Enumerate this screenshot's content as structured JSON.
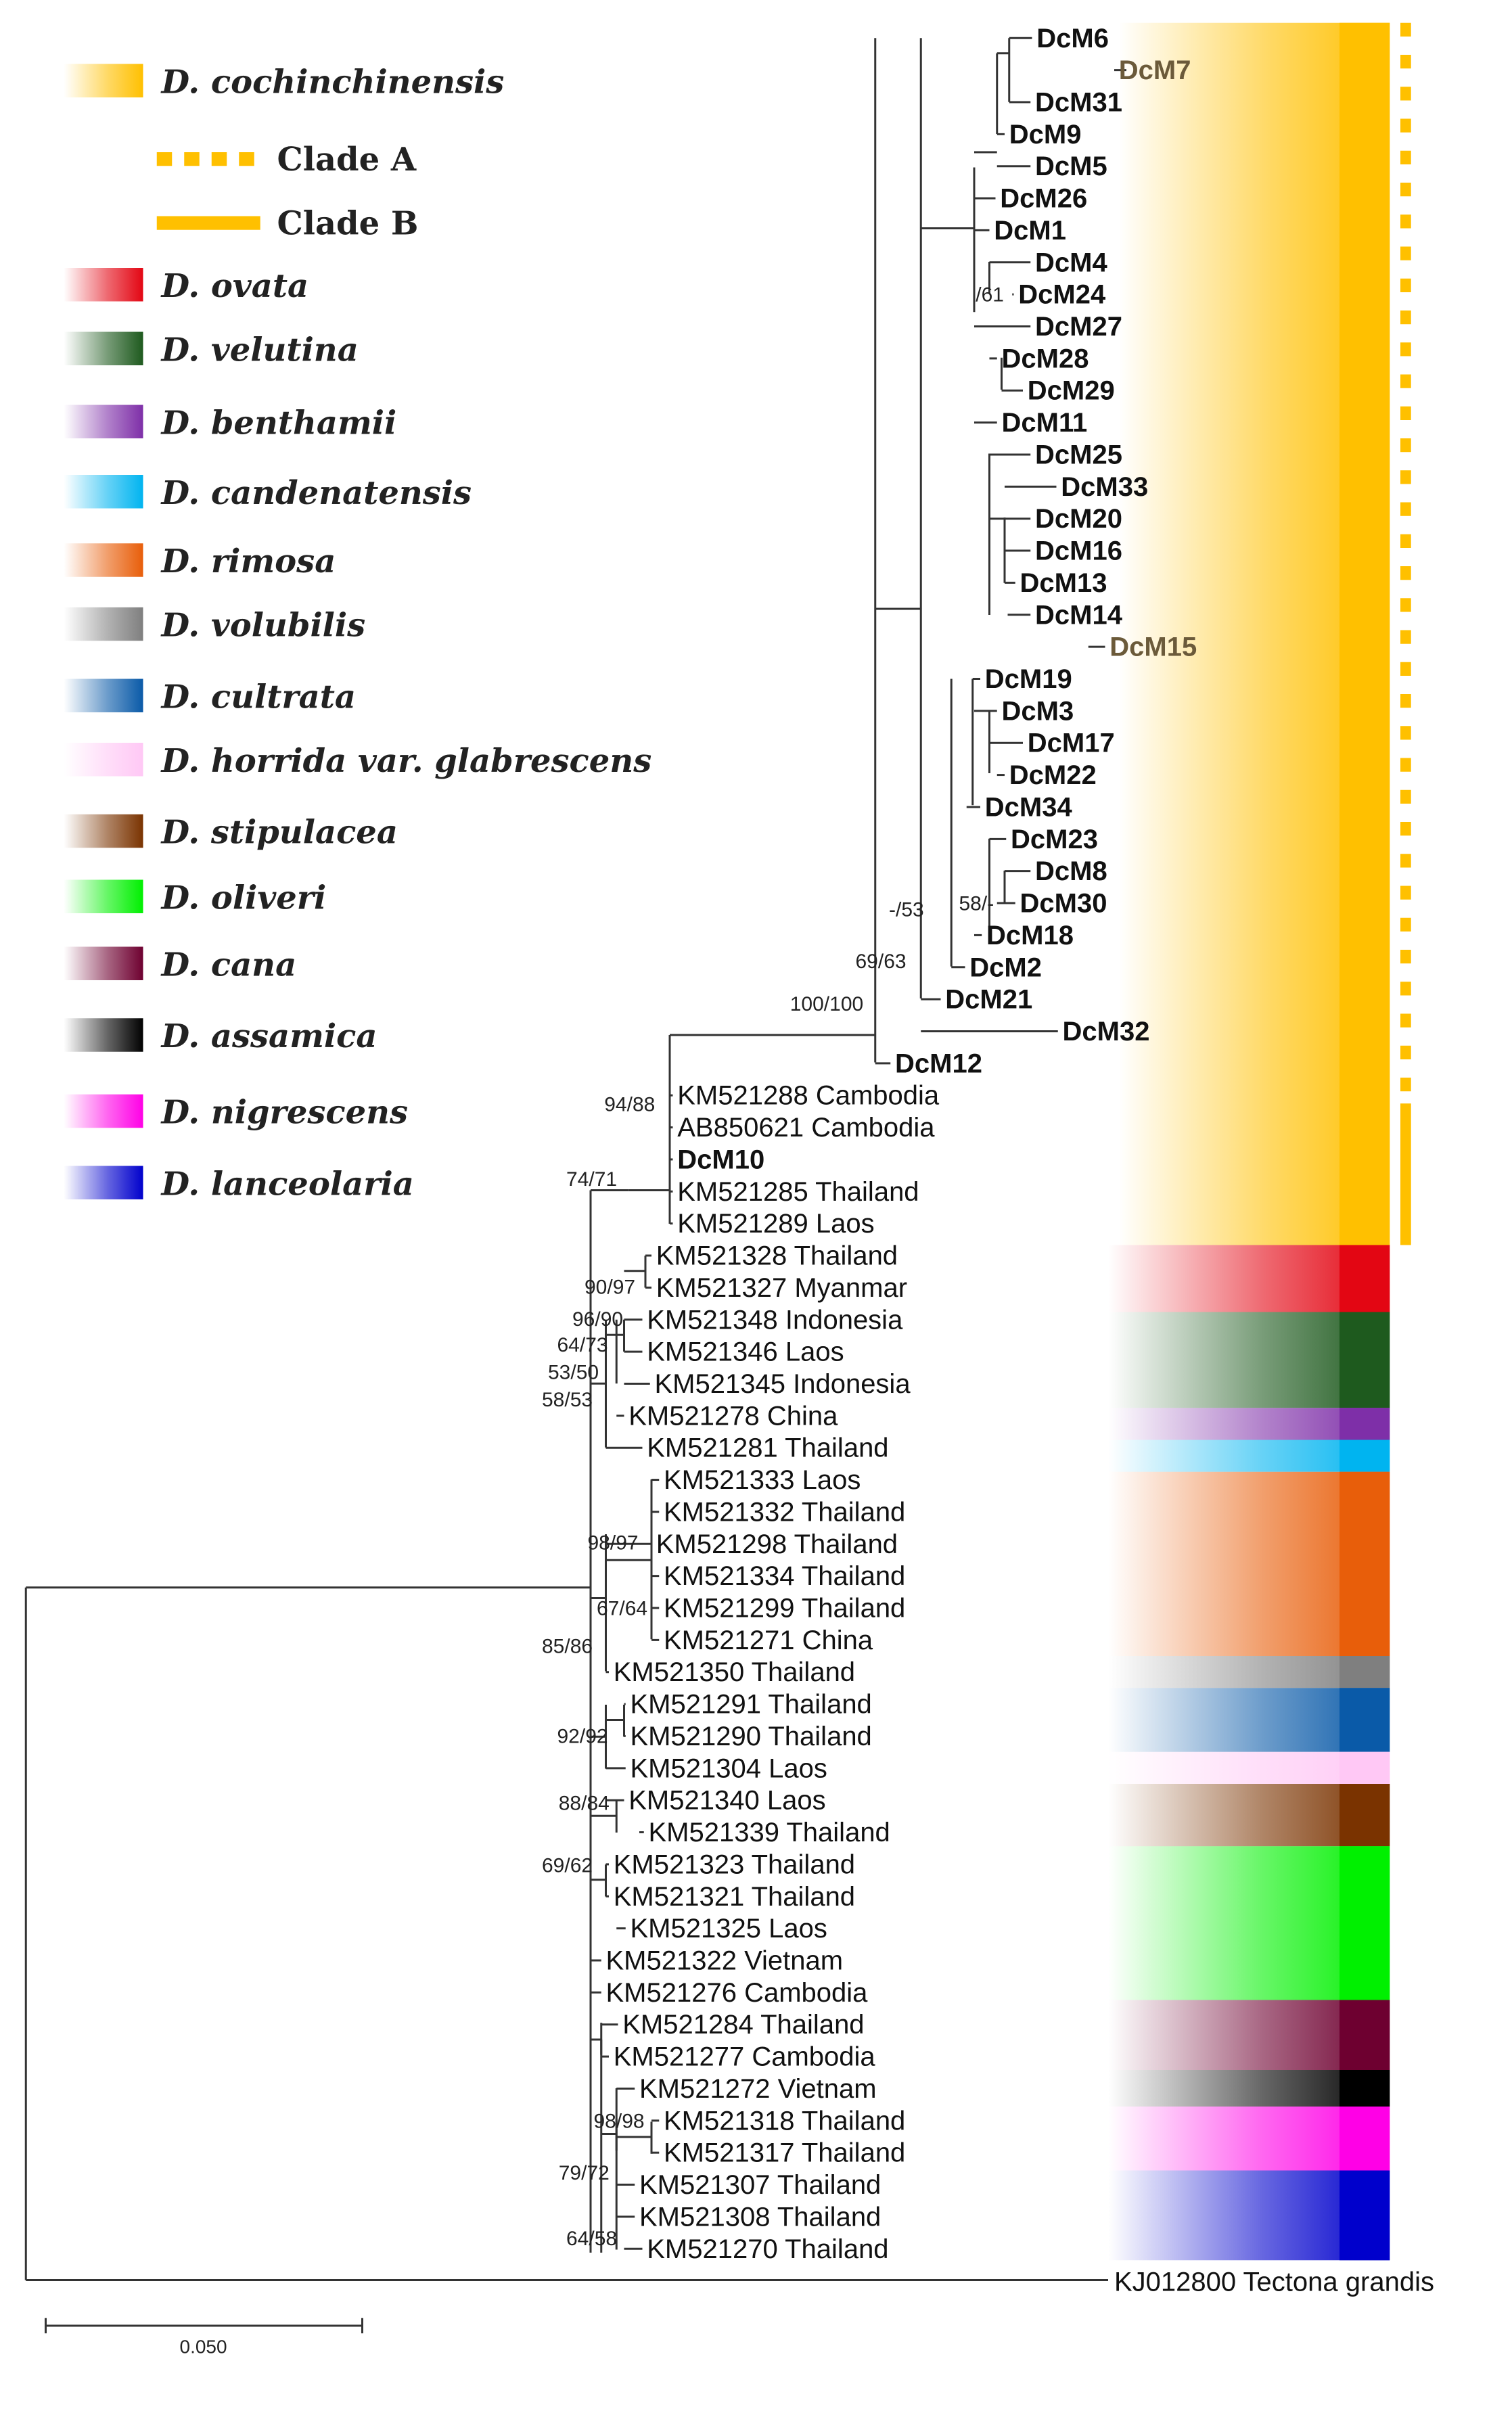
{
  "legend": [
    {
      "name": "D. cochinchinensis",
      "color": "#FFC000"
    },
    {
      "name": "D. ovata",
      "color": "#E30613"
    },
    {
      "name": "D. velutina",
      "color": "#1E5A1E"
    },
    {
      "name": "D. benthamii",
      "color": "#7E2FA8"
    },
    {
      "name": "D. candenatensis",
      "color": "#00B4F0"
    },
    {
      "name": "D. rimosa",
      "color": "#E85E0A"
    },
    {
      "name": "D. volubilis",
      "color": "#7F7F7F"
    },
    {
      "name": "D. cultrata",
      "color": "#0A5AA8"
    },
    {
      "name": "D. horrida var. glabrescens",
      "color": "#FFC8F5"
    },
    {
      "name": "D. stipulacea",
      "color": "#7A3300"
    },
    {
      "name": "D. oliveri",
      "color": "#00F000"
    },
    {
      "name": "D. cana",
      "color": "#6E0030"
    },
    {
      "name": "D. assamica",
      "color": "#000000"
    },
    {
      "name": "D. nigrescens",
      "color": "#FF00E6"
    },
    {
      "name": "D. lanceolaria",
      "color": "#0000CC"
    }
  ],
  "clades": {
    "a": "Clade A",
    "b": "Clade B"
  },
  "tips": [
    {
      "label": "DcM6",
      "style": "bold"
    },
    {
      "label": "DcM7",
      "style": "brown"
    },
    {
      "label": "DcM31",
      "style": "bold"
    },
    {
      "label": "DcM9",
      "style": "bold"
    },
    {
      "label": "DcM5",
      "style": "bold"
    },
    {
      "label": "DcM26",
      "style": "bold"
    },
    {
      "label": "DcM1",
      "style": "bold"
    },
    {
      "label": "DcM4",
      "style": "bold"
    },
    {
      "label": "DcM24",
      "style": "bold"
    },
    {
      "label": "DcM27",
      "style": "bold"
    },
    {
      "label": "DcM28",
      "style": "bold"
    },
    {
      "label": "DcM29",
      "style": "bold"
    },
    {
      "label": "DcM11",
      "style": "bold"
    },
    {
      "label": "DcM25",
      "style": "bold"
    },
    {
      "label": "DcM33",
      "style": "bold"
    },
    {
      "label": "DcM20",
      "style": "bold"
    },
    {
      "label": "DcM16",
      "style": "bold"
    },
    {
      "label": "DcM13",
      "style": "bold"
    },
    {
      "label": "DcM14",
      "style": "bold"
    },
    {
      "label": "DcM15",
      "style": "brown"
    },
    {
      "label": "DcM19",
      "style": "bold"
    },
    {
      "label": "DcM3",
      "style": "bold"
    },
    {
      "label": "DcM17",
      "style": "bold"
    },
    {
      "label": "DcM22",
      "style": "bold"
    },
    {
      "label": "DcM34",
      "style": "bold"
    },
    {
      "label": "DcM23",
      "style": "bold"
    },
    {
      "label": "DcM8",
      "style": "bold"
    },
    {
      "label": "DcM30",
      "style": "bold"
    },
    {
      "label": "DcM18",
      "style": "bold"
    },
    {
      "label": "DcM2",
      "style": "bold"
    },
    {
      "label": "DcM21",
      "style": "bold"
    },
    {
      "label": "DcM32",
      "style": "bold"
    },
    {
      "label": "DcM12",
      "style": "bold"
    },
    {
      "label": "KM521288 Cambodia",
      "style": "normal"
    },
    {
      "label": "AB850621 Cambodia",
      "style": "normal"
    },
    {
      "label": "DcM10",
      "style": "bold"
    },
    {
      "label": "KM521285 Thailand",
      "style": "normal"
    },
    {
      "label": "KM521289 Laos",
      "style": "normal"
    },
    {
      "label": "KM521328 Thailand",
      "style": "normal"
    },
    {
      "label": "KM521327 Myanmar",
      "style": "normal"
    },
    {
      "label": "KM521348 Indonesia",
      "style": "normal"
    },
    {
      "label": "KM521346 Laos",
      "style": "normal"
    },
    {
      "label": "KM521345 Indonesia",
      "style": "normal"
    },
    {
      "label": "KM521278 China",
      "style": "normal"
    },
    {
      "label": "KM521281 Thailand",
      "style": "normal"
    },
    {
      "label": "KM521333 Laos",
      "style": "normal"
    },
    {
      "label": "KM521332 Thailand",
      "style": "normal"
    },
    {
      "label": "KM521298 Thailand",
      "style": "normal"
    },
    {
      "label": "KM521334 Thailand",
      "style": "normal"
    },
    {
      "label": "KM521299 Thailand",
      "style": "normal"
    },
    {
      "label": "KM521271 China",
      "style": "normal"
    },
    {
      "label": "KM521350 Thailand",
      "style": "normal"
    },
    {
      "label": "KM521291 Thailand",
      "style": "normal"
    },
    {
      "label": "KM521290 Thailand",
      "style": "normal"
    },
    {
      "label": "KM521304 Laos",
      "style": "normal"
    },
    {
      "label": "KM521340 Laos",
      "style": "normal"
    },
    {
      "label": "KM521339 Thailand",
      "style": "normal"
    },
    {
      "label": "KM521323 Thailand",
      "style": "normal"
    },
    {
      "label": "KM521321 Thailand",
      "style": "normal"
    },
    {
      "label": "KM521325 Laos",
      "style": "normal"
    },
    {
      "label": "KM521322 Vietnam",
      "style": "normal"
    },
    {
      "label": "KM521276 Cambodia",
      "style": "normal"
    },
    {
      "label": "KM521284 Thailand",
      "style": "normal"
    },
    {
      "label": "KM521277 Cambodia",
      "style": "normal"
    },
    {
      "label": "KM521272 Vietnam",
      "style": "normal"
    },
    {
      "label": "KM521318 Thailand",
      "style": "normal"
    },
    {
      "label": "KM521317 Thailand",
      "style": "normal"
    },
    {
      "label": "KM521307 Thailand",
      "style": "normal"
    },
    {
      "label": "KM521308 Thailand",
      "style": "normal"
    },
    {
      "label": "KM521270 Thailand",
      "style": "normal"
    }
  ],
  "outgroup": {
    "label": "KJ012800 Tectona grandis"
  },
  "support_values": [
    "/61",
    "-/53",
    "58/-",
    "69/63",
    "100/100",
    "94/88",
    "74/71",
    "90/97",
    "96/90",
    "64/73",
    "53/50",
    "58/53",
    "98/97",
    "67/64",
    "85/86",
    "92/92",
    "88/84",
    "69/62",
    "98/98",
    "79/72",
    "64/58"
  ],
  "scale_bar": {
    "label": "0.050"
  }
}
